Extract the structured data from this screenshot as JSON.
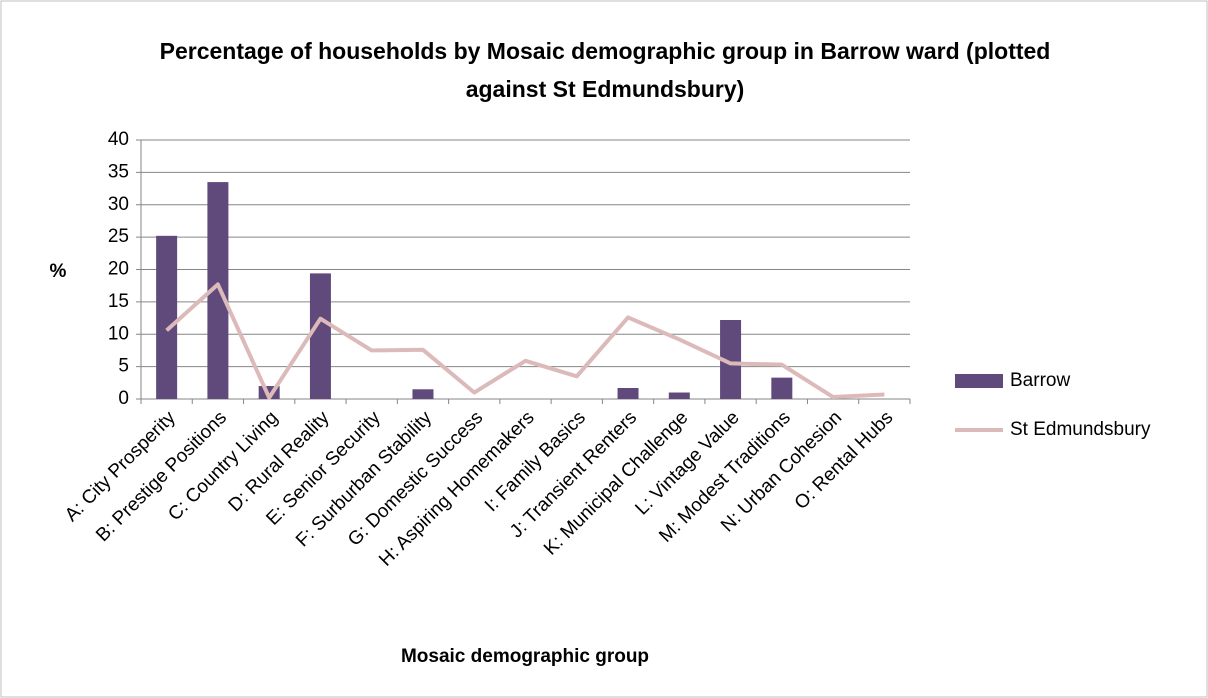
{
  "chart_data": {
    "type": "bar-line",
    "title": "Percentage of households by Mosaic demographic group in Barrow ward (plotted against St Edmundsbury)",
    "ylabel": "%",
    "xlabel": "Mosaic demographic group",
    "categories": [
      "A: City Prosperity",
      "B: Prestige Positions",
      "C: Country Living",
      "D: Rural Reality",
      "E: Senior Security",
      "F: Surburban Stability",
      "G: Domestic Success",
      "H: Aspiring Homemakers",
      "I: Family Basics",
      "J: Transient Renters",
      "K: Municipal Challenge",
      "L: Vintage Value",
      "M: Modest Traditions",
      "N: Urban Cohesion",
      "O: Rental Hubs"
    ],
    "series": [
      {
        "name": "Barrow",
        "type": "bar",
        "color": "#604a7b",
        "values": [
          25.2,
          33.5,
          2.0,
          19.4,
          0,
          1.5,
          0,
          0,
          0,
          1.7,
          1.0,
          12.2,
          3.3,
          0,
          0
        ]
      },
      {
        "name": "St Edmundsbury",
        "type": "line",
        "color": "#dbbab9",
        "values": [
          10.6,
          17.7,
          0.2,
          12.4,
          7.5,
          7.6,
          1.0,
          5.9,
          3.5,
          12.6,
          9.2,
          5.5,
          5.3,
          0.3,
          0.7
        ]
      }
    ],
    "ylim": [
      0,
      40
    ],
    "yticks": [
      0,
      5,
      10,
      15,
      20,
      25,
      30,
      35,
      40
    ],
    "grid": true,
    "legend": "right"
  }
}
